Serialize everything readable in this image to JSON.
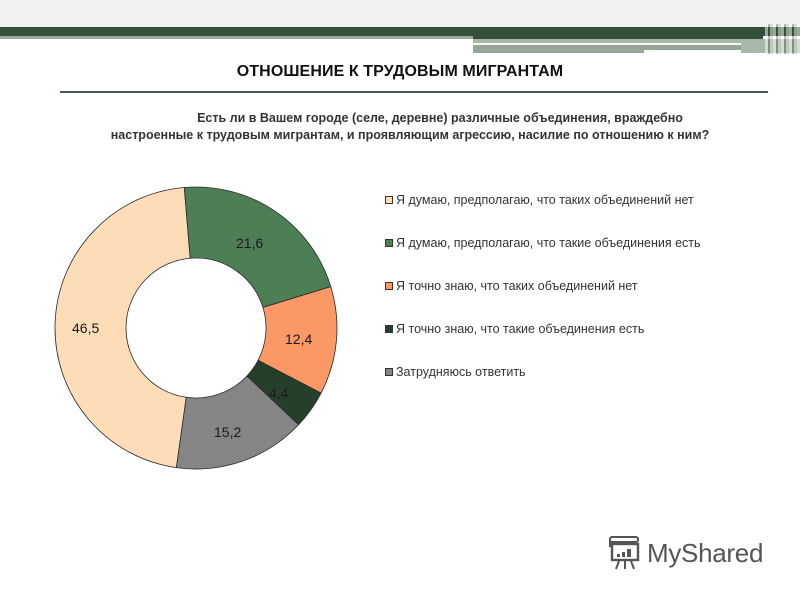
{
  "header": {
    "title": "ОТНОШЕНИЕ К ТРУДОВЫМ МИГРАНТАМ",
    "colors": {
      "dark_bar": "#344f37",
      "light_bar": "#9aab9b",
      "top_band": "#f1f1f0"
    }
  },
  "question": {
    "line1": "Есть ли в Вашем городе (селе, деревне) различные объединения, враждебно",
    "line2": "настроенные к трудовым мигрантам, и проявляющим агрессию, насилие по отношению к ним?"
  },
  "legend": {
    "items": [
      {
        "label": "Я думаю, предполагаю, что таких  объединений нет",
        "color": "#fddcb8"
      },
      {
        "label": "Я думаю, предполагаю, что такие  объединения есть",
        "color": "#4e7e55"
      },
      {
        "label": "Я точно знаю, что таких объединений нет",
        "color": "#fb9966"
      },
      {
        "label": "Я точно знаю, что такие объединения есть",
        "color": "#263f2a"
      },
      {
        "label": "Затрудняюсь ответить",
        "color": "#858585"
      }
    ]
  },
  "slice_labels": {
    "s0": "46,5",
    "s1": "21,6",
    "s2": "12,4",
    "s3": "4,4",
    "s4": "15,2"
  },
  "chart_data": {
    "type": "pie",
    "subtype": "donut",
    "title": "Есть ли в Вашем городе (селе, деревне) различные объединения, враждебно настроенные к трудовым мигрантам, и проявляющим агрессию, насилие по отношению к ним?",
    "categories": [
      "Я думаю, предполагаю, что таких  объединений нет",
      "Я думаю, предполагаю, что такие  объединения есть",
      "Я точно знаю, что таких объединений нет",
      "Я точно знаю, что такие объединения есть",
      "Затрудняюсь ответить"
    ],
    "values": [
      46.5,
      21.6,
      12.4,
      4.4,
      15.2
    ],
    "colors": [
      "#fddcb8",
      "#4e7e55",
      "#fb9966",
      "#263f2a",
      "#858585"
    ],
    "unit": "%",
    "legend_position": "right",
    "data_labels": true
  },
  "watermark": {
    "text": "MyShared",
    "icon": "presentation-board-icon"
  }
}
